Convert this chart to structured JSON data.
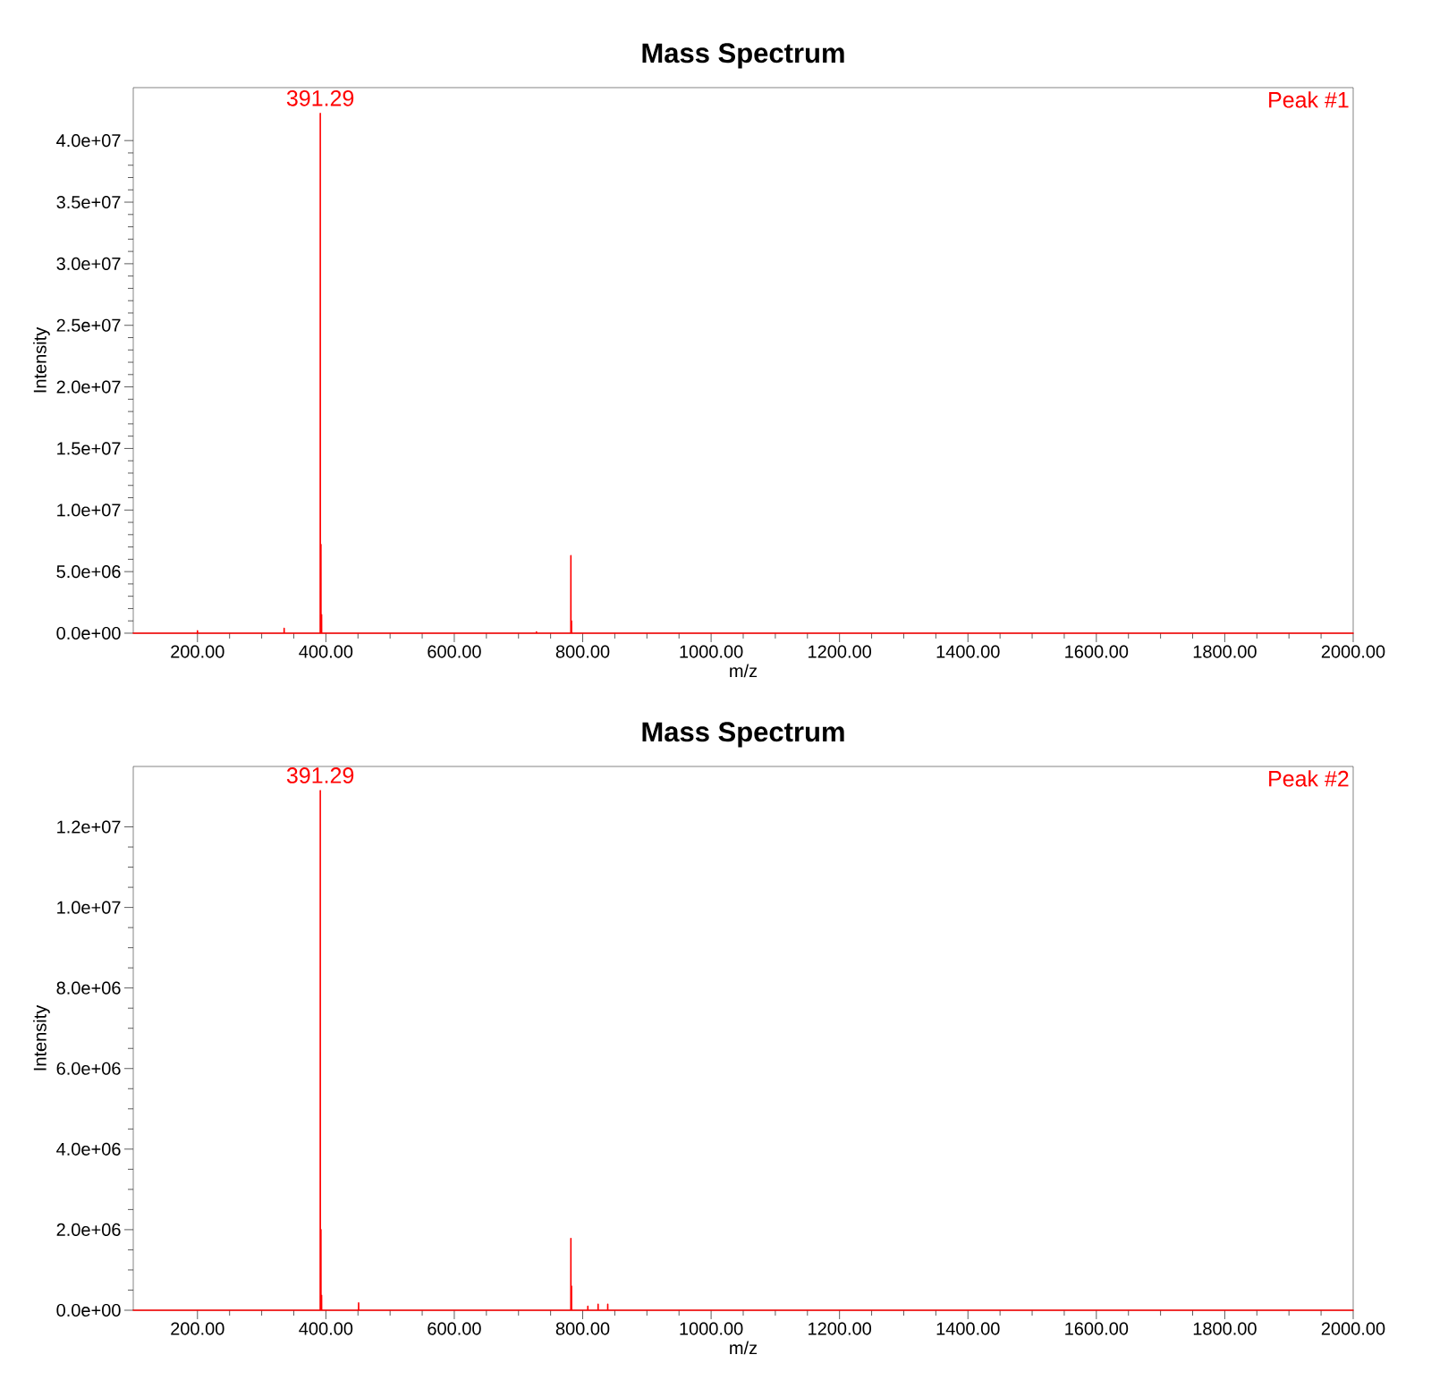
{
  "chart_data": [
    {
      "type": "line",
      "title": "Mass Spectrum",
      "xlabel": "m/z",
      "ylabel": "Intensity",
      "xlim": [
        100,
        2000
      ],
      "ylim": [
        0,
        44300000
      ],
      "xticks": [
        {
          "value": 200,
          "label": "200.00"
        },
        {
          "value": 400,
          "label": "400.00"
        },
        {
          "value": 600,
          "label": "600.00"
        },
        {
          "value": 800,
          "label": "800.00"
        },
        {
          "value": 1000,
          "label": "1000.00"
        },
        {
          "value": 1200,
          "label": "1200.00"
        },
        {
          "value": 1400,
          "label": "1400.00"
        },
        {
          "value": 1600,
          "label": "1600.00"
        },
        {
          "value": 1800,
          "label": "1800.00"
        },
        {
          "value": 2000,
          "label": "2000.00"
        }
      ],
      "yticks": [
        {
          "value": 0,
          "label": "0.0e+00"
        },
        {
          "value": 5000000,
          "label": "5.0e+06"
        },
        {
          "value": 10000000,
          "label": "1.0e+07"
        },
        {
          "value": 15000000,
          "label": "1.5e+07"
        },
        {
          "value": 20000000,
          "label": "2.0e+07"
        },
        {
          "value": 25000000,
          "label": "2.5e+07"
        },
        {
          "value": 30000000,
          "label": "3.0e+07"
        },
        {
          "value": 35000000,
          "label": "3.5e+07"
        },
        {
          "value": 40000000,
          "label": "4.0e+07"
        }
      ],
      "series": [
        {
          "color": "#ff0000",
          "x": [
            100,
            199.9,
            200,
            200.1,
            334.9,
            335,
            335.1,
            391.19,
            391.29,
            391.39,
            392.19,
            392.29,
            392.39,
            393.2,
            393.3,
            393.4,
            727.9,
            728,
            728.1,
            781.5,
            781.6,
            781.7,
            782.5,
            782.6,
            782.7,
            2000
          ],
          "values": [
            0,
            0,
            200000,
            0,
            0,
            400000,
            0,
            0,
            42200000,
            0,
            0,
            7200000,
            0,
            0,
            1500000,
            0,
            0,
            100000,
            0,
            0,
            6300000,
            0,
            0,
            1000000,
            0,
            0
          ]
        }
      ],
      "annotations": [
        {
          "text": "391.29",
          "x": 391.29,
          "y": 42200000
        },
        "Peak #1"
      ]
    },
    {
      "type": "line",
      "title": "Mass Spectrum",
      "xlabel": "m/z",
      "ylabel": "Intensity",
      "xlim": [
        100,
        2000
      ],
      "ylim": [
        0,
        13500000
      ],
      "xticks": [
        {
          "value": 200,
          "label": "200.00"
        },
        {
          "value": 400,
          "label": "400.00"
        },
        {
          "value": 600,
          "label": "600.00"
        },
        {
          "value": 800,
          "label": "800.00"
        },
        {
          "value": 1000,
          "label": "1000.00"
        },
        {
          "value": 1200,
          "label": "1200.00"
        },
        {
          "value": 1400,
          "label": "1400.00"
        },
        {
          "value": 1600,
          "label": "1600.00"
        },
        {
          "value": 1800,
          "label": "1800.00"
        },
        {
          "value": 2000,
          "label": "2000.00"
        }
      ],
      "yticks": [
        {
          "value": 0,
          "label": "0.0e+00"
        },
        {
          "value": 2000000,
          "label": "2.0e+06"
        },
        {
          "value": 4000000,
          "label": "4.0e+06"
        },
        {
          "value": 6000000,
          "label": "6.0e+06"
        },
        {
          "value": 8000000,
          "label": "8.0e+06"
        },
        {
          "value": 10000000,
          "label": "1.0e+07"
        },
        {
          "value": 12000000,
          "label": "1.2e+07"
        }
      ],
      "series": [
        {
          "color": "#ff0000",
          "x": [
            100,
            391.19,
            391.29,
            391.39,
            392.19,
            392.29,
            392.39,
            393.2,
            393.3,
            393.4,
            450.9,
            451,
            451.1,
            781.5,
            781.6,
            781.7,
            782.5,
            782.6,
            782.7,
            807.9,
            808,
            808.1,
            823.9,
            824,
            824.1,
            838.9,
            839,
            839.1,
            2000
          ],
          "values": [
            0,
            0,
            12900000,
            0,
            0,
            2000000,
            0,
            0,
            370000,
            0,
            0,
            180000,
            0,
            0,
            1780000,
            0,
            0,
            600000,
            0,
            0,
            100000,
            0,
            0,
            150000,
            0,
            0,
            150000,
            0,
            0
          ]
        }
      ],
      "annotations": [
        {
          "text": "391.29",
          "x": 391.29,
          "y": 12900000
        },
        "Peak #2"
      ]
    }
  ]
}
